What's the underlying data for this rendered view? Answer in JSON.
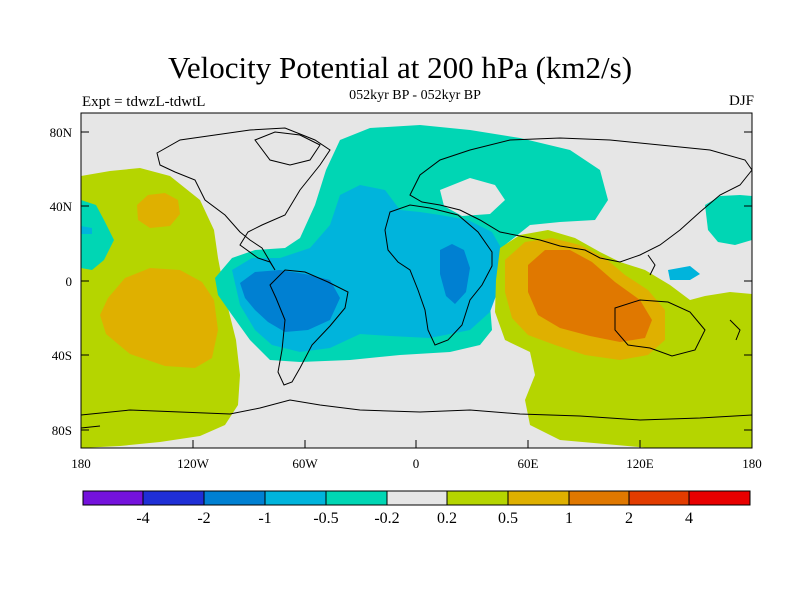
{
  "header": {
    "title": "Velocity Potential at 200 hPa (km2/s)",
    "subtitle": "052kyr BP - 052kyr BP",
    "left_label": "Expt = tdwzL-tdwtL",
    "right_label": "DJF"
  },
  "map": {
    "y_axis_labels": [
      "80N",
      "40N",
      "0",
      "40S",
      "80S"
    ],
    "x_axis_labels": [
      "180",
      "120W",
      "60W",
      "0",
      "60E",
      "120E",
      "180"
    ],
    "background_color": "#e6e6e6",
    "regions": [
      {
        "name": "pacific-positive",
        "level": "0.2 to 0.5",
        "color": "#b5d500"
      },
      {
        "name": "pacific-center",
        "level": "0.5 to 1",
        "color": "#dfb000"
      },
      {
        "name": "atlantic-negative",
        "level": "-0.5 to -0.2",
        "color": "#00d6b4"
      },
      {
        "name": "atlantic-core",
        "level": "-1 to -0.5",
        "color": "#00b4dc"
      },
      {
        "name": "south-america-core",
        "level": "-2 to -1",
        "color": "#0080d2"
      },
      {
        "name": "indian-positive",
        "level": "0.2 to 0.5",
        "color": "#b5d500"
      },
      {
        "name": "indian-mid",
        "level": "0.5 to 1",
        "color": "#dfb000"
      },
      {
        "name": "indian-core",
        "level": "1 to 2",
        "color": "#e07800"
      }
    ]
  },
  "colorbar": {
    "colors": [
      "#7412dc",
      "#1f2fd6",
      "#0080d2",
      "#00b4dc",
      "#00d6b4",
      "#e6e6e6",
      "#b5d500",
      "#dfb000",
      "#e07800",
      "#e23c00",
      "#e80000"
    ],
    "labels": [
      "-4",
      "-2",
      "-1",
      "-0.5",
      "-0.2",
      "0.2",
      "0.5",
      "1",
      "2",
      "4"
    ]
  }
}
